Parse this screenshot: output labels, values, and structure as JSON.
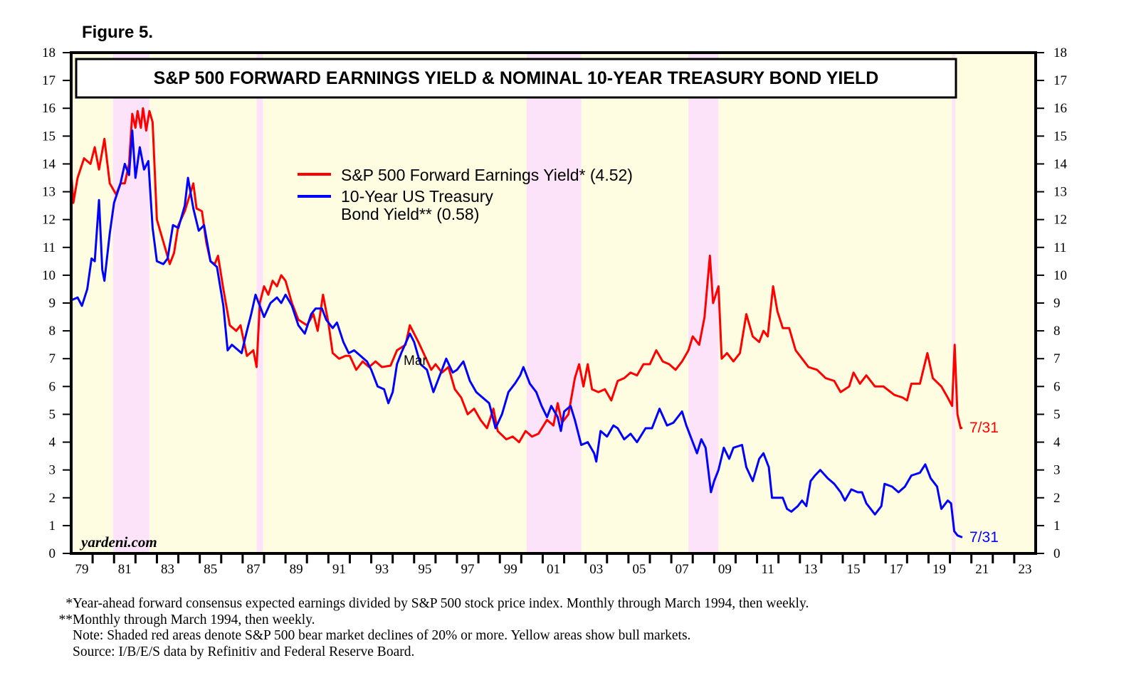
{
  "figure_label": "Figure 5.",
  "chart_data": {
    "type": "line",
    "title": "S&P 500 FORWARD EARNINGS YIELD & NOMINAL 10-YEAR TREASURY BOND YIELD",
    "xlabel": "",
    "ylabel": "",
    "xlim": [
      1979,
      2024
    ],
    "ylim": [
      0,
      18
    ],
    "yticks": [
      0,
      1,
      2,
      3,
      4,
      5,
      6,
      7,
      8,
      9,
      10,
      11,
      12,
      13,
      14,
      15,
      16,
      17,
      18
    ],
    "xtick_labels": [
      "79",
      "81",
      "83",
      "85",
      "87",
      "89",
      "91",
      "93",
      "95",
      "97",
      "99",
      "01",
      "03",
      "05",
      "07",
      "09",
      "11",
      "13",
      "15",
      "17",
      "19",
      "21",
      "23"
    ],
    "grid": false,
    "legend_placement": "upper-center",
    "watermark": "yardeni.com",
    "annotation_mar": "Mar",
    "colors": {
      "background": "#fffde1",
      "bear": "#fce3fa",
      "red": "#ff0000",
      "blue": "#0000ff"
    },
    "bear_markets": [
      [
        1980.95,
        1982.65
      ],
      [
        1987.65,
        1987.95
      ],
      [
        2000.25,
        2002.8
      ],
      [
        2007.8,
        2009.2
      ],
      [
        2020.1,
        2020.25
      ]
    ],
    "series": [
      {
        "name": "S&P 500 Forward Earnings Yield* (4.52)",
        "color": "#ff0000",
        "end_label": "7/31",
        "x": [
          1979.0,
          1979.1,
          1979.3,
          1979.6,
          1979.9,
          1980.1,
          1980.3,
          1980.55,
          1980.8,
          1981.1,
          1981.3,
          1981.5,
          1981.7,
          1981.85,
          1982.0,
          1982.1,
          1982.25,
          1982.35,
          1982.5,
          1982.65,
          1982.8,
          1983.0,
          1983.3,
          1983.6,
          1983.8,
          1984.0,
          1984.3,
          1984.5,
          1984.7,
          1984.85,
          1985.1,
          1985.3,
          1985.5,
          1985.7,
          1985.85,
          1986.1,
          1986.4,
          1986.7,
          1986.9,
          1987.2,
          1987.5,
          1987.65,
          1987.8,
          1988.0,
          1988.2,
          1988.4,
          1988.6,
          1988.8,
          1989.0,
          1989.3,
          1989.6,
          1990.0,
          1990.3,
          1990.5,
          1990.75,
          1991.0,
          1991.2,
          1991.5,
          1991.8,
          1992.0,
          1992.3,
          1992.6,
          1992.9,
          1993.2,
          1993.5,
          1993.9,
          1994.2,
          1994.6,
          1994.8,
          1995.2,
          1995.5,
          1995.8,
          1996.0,
          1996.3,
          1996.6,
          1996.9,
          1997.2,
          1997.5,
          1997.8,
          1998.1,
          1998.4,
          1998.7,
          1998.9,
          1999.3,
          1999.6,
          1999.9,
          2000.2,
          2000.5,
          2000.8,
          2001.2,
          2001.5,
          2001.7,
          2001.9,
          2002.2,
          2002.5,
          2002.7,
          2002.9,
          2003.1,
          2003.3,
          2003.6,
          2003.9,
          2004.2,
          2004.5,
          2004.8,
          2005.1,
          2005.4,
          2005.7,
          2006.0,
          2006.3,
          2006.6,
          2006.9,
          2007.2,
          2007.5,
          2007.8,
          2008.0,
          2008.3,
          2008.55,
          2008.8,
          2008.95,
          2009.2,
          2009.35,
          2009.6,
          2009.9,
          2010.2,
          2010.5,
          2010.8,
          2011.1,
          2011.3,
          2011.5,
          2011.75,
          2011.95,
          2012.2,
          2012.5,
          2012.8,
          2013.1,
          2013.4,
          2013.8,
          2014.2,
          2014.6,
          2014.9,
          2015.3,
          2015.5,
          2015.8,
          2016.1,
          2016.5,
          2016.9,
          2017.4,
          2017.8,
          2018.0,
          2018.2,
          2018.6,
          2018.95,
          2019.2,
          2019.6,
          2019.9,
          2020.1,
          2020.22,
          2020.35,
          2020.5,
          2020.58
        ],
        "values": [
          13.7,
          12.6,
          13.5,
          14.2,
          14.0,
          14.6,
          13.8,
          14.9,
          13.3,
          12.9,
          13.3,
          13.3,
          14.0,
          15.8,
          15.3,
          15.9,
          15.3,
          16.0,
          15.2,
          15.9,
          15.5,
          12.0,
          11.2,
          10.4,
          10.8,
          11.8,
          12.3,
          12.8,
          13.3,
          12.4,
          12.3,
          11.2,
          10.5,
          10.4,
          10.7,
          9.5,
          8.2,
          8.0,
          8.2,
          7.1,
          7.3,
          6.7,
          9.0,
          9.6,
          9.3,
          9.8,
          9.6,
          10.0,
          9.8,
          9.0,
          8.4,
          8.2,
          8.6,
          8.0,
          9.3,
          8.3,
          7.2,
          7.0,
          7.1,
          7.1,
          6.6,
          6.9,
          6.7,
          6.9,
          6.7,
          6.75,
          7.3,
          7.5,
          8.2,
          7.6,
          7.1,
          6.6,
          6.8,
          6.5,
          6.7,
          5.9,
          5.6,
          5.0,
          5.2,
          4.8,
          4.5,
          5.2,
          4.4,
          4.1,
          4.2,
          4.0,
          4.4,
          4.2,
          4.3,
          4.8,
          4.6,
          5.4,
          4.7,
          5.0,
          6.3,
          6.8,
          6.0,
          6.8,
          5.9,
          5.8,
          5.9,
          5.5,
          6.2,
          6.3,
          6.5,
          6.4,
          6.8,
          6.8,
          7.3,
          6.9,
          6.8,
          6.6,
          6.9,
          7.3,
          7.8,
          7.5,
          8.5,
          10.7,
          9.0,
          9.6,
          7.0,
          7.2,
          6.9,
          7.2,
          8.6,
          7.8,
          7.6,
          8.0,
          7.8,
          9.6,
          8.7,
          8.1,
          8.1,
          7.3,
          7.0,
          6.7,
          6.6,
          6.3,
          6.2,
          5.8,
          6.0,
          6.5,
          6.1,
          6.4,
          6.0,
          6.0,
          5.7,
          5.6,
          5.5,
          6.1,
          6.1,
          7.2,
          6.3,
          6.0,
          5.6,
          5.3,
          7.5,
          5.0,
          4.5,
          4.52
        ]
      },
      {
        "name": "10-Year US Treasury Bond Yield** (0.58)",
        "name_line1": "10-Year US Treasury",
        "name_line2": "Bond Yield** (0.58)",
        "color": "#0000ff",
        "end_label": "7/31",
        "x": [
          1979.0,
          1979.3,
          1979.5,
          1979.75,
          1979.95,
          1980.1,
          1980.3,
          1980.45,
          1980.55,
          1980.8,
          1981.0,
          1981.3,
          1981.5,
          1981.7,
          1981.85,
          1982.0,
          1982.2,
          1982.4,
          1982.6,
          1982.8,
          1983.0,
          1983.3,
          1983.5,
          1983.75,
          1984.0,
          1984.3,
          1984.45,
          1984.7,
          1984.95,
          1985.2,
          1985.5,
          1985.8,
          1986.1,
          1986.3,
          1986.5,
          1986.8,
          1986.95,
          1987.2,
          1987.4,
          1987.6,
          1987.8,
          1988.0,
          1988.3,
          1988.6,
          1988.8,
          1989.0,
          1989.3,
          1989.6,
          1989.9,
          1990.2,
          1990.4,
          1990.7,
          1990.9,
          1991.2,
          1991.4,
          1991.7,
          1991.95,
          1992.2,
          1992.5,
          1992.8,
          1993.0,
          1993.3,
          1993.6,
          1993.8,
          1994.0,
          1994.2,
          1994.4,
          1994.8,
          1995.0,
          1995.3,
          1995.6,
          1995.9,
          1996.2,
          1996.5,
          1996.8,
          1997.0,
          1997.3,
          1997.6,
          1997.9,
          1998.2,
          1998.5,
          1998.8,
          1999.1,
          1999.4,
          1999.7,
          1999.95,
          2000.1,
          2000.4,
          2000.7,
          2000.95,
          2001.2,
          2001.4,
          2001.7,
          2001.85,
          2002.0,
          2002.3,
          2002.5,
          2002.8,
          2003.1,
          2003.4,
          2003.5,
          2003.7,
          2004.0,
          2004.3,
          2004.5,
          2004.8,
          2005.1,
          2005.4,
          2005.8,
          2006.1,
          2006.45,
          2006.8,
          2007.1,
          2007.5,
          2007.7,
          2007.9,
          2008.2,
          2008.4,
          2008.6,
          2008.85,
          2009.0,
          2009.2,
          2009.45,
          2009.7,
          2009.9,
          2010.3,
          2010.5,
          2010.8,
          2011.1,
          2011.3,
          2011.55,
          2011.7,
          2011.9,
          2012.2,
          2012.4,
          2012.6,
          2012.9,
          2013.1,
          2013.3,
          2013.5,
          2013.7,
          2013.95,
          2014.3,
          2014.6,
          2014.9,
          2015.1,
          2015.4,
          2015.7,
          2015.9,
          2016.1,
          2016.5,
          2016.8,
          2016.95,
          2017.3,
          2017.6,
          2017.9,
          2018.2,
          2018.6,
          2018.85,
          2019.1,
          2019.4,
          2019.6,
          2019.9,
          2020.05,
          2020.2,
          2020.35,
          2020.5,
          2020.58
        ],
        "values": [
          9.1,
          9.2,
          8.9,
          9.5,
          10.6,
          10.5,
          12.7,
          10.2,
          9.8,
          11.5,
          12.6,
          13.3,
          14.0,
          13.6,
          15.2,
          13.5,
          14.6,
          13.8,
          14.1,
          11.7,
          10.5,
          10.4,
          10.6,
          11.8,
          11.7,
          12.5,
          13.5,
          12.4,
          11.6,
          11.8,
          10.5,
          10.3,
          8.9,
          7.3,
          7.5,
          7.3,
          7.2,
          8.0,
          8.6,
          9.3,
          8.9,
          8.5,
          9.0,
          9.2,
          9.0,
          9.3,
          8.9,
          8.2,
          7.9,
          8.6,
          8.8,
          8.8,
          8.4,
          8.1,
          8.3,
          7.6,
          7.2,
          7.3,
          7.1,
          6.9,
          6.6,
          6.0,
          5.9,
          5.4,
          5.8,
          6.8,
          7.2,
          7.9,
          7.6,
          6.8,
          6.6,
          5.8,
          6.4,
          7.0,
          6.5,
          6.6,
          6.9,
          6.2,
          5.8,
          5.6,
          5.4,
          4.5,
          5.0,
          5.8,
          6.1,
          6.4,
          6.7,
          6.1,
          5.8,
          5.3,
          4.9,
          5.3,
          4.9,
          4.4,
          5.1,
          5.3,
          4.8,
          3.9,
          4.0,
          3.6,
          3.3,
          4.4,
          4.2,
          4.6,
          4.5,
          4.1,
          4.3,
          4.0,
          4.5,
          4.5,
          5.2,
          4.6,
          4.7,
          5.1,
          4.6,
          4.2,
          3.6,
          4.1,
          3.8,
          2.2,
          2.6,
          3.0,
          3.8,
          3.4,
          3.8,
          3.9,
          3.1,
          2.6,
          3.4,
          3.6,
          3.1,
          2.0,
          2.0,
          2.0,
          1.6,
          1.5,
          1.7,
          1.9,
          1.7,
          2.6,
          2.8,
          3.0,
          2.7,
          2.5,
          2.2,
          1.9,
          2.3,
          2.2,
          2.2,
          1.8,
          1.4,
          1.7,
          2.5,
          2.4,
          2.2,
          2.4,
          2.8,
          2.9,
          3.2,
          2.7,
          2.4,
          1.6,
          1.9,
          1.8,
          0.8,
          0.65,
          0.6,
          0.58
        ]
      }
    ]
  },
  "footnotes": [
    {
      "marker": "*",
      "text": "Year-ahead forward consensus expected earnings divided by S&P 500 stock price index. Monthly through March 1994, then weekly."
    },
    {
      "marker": "**",
      "text": "Monthly through March 1994, then weekly."
    },
    {
      "marker": "",
      "text": "Note: Shaded red areas denote S&P 500 bear market declines of 20% or more. Yellow areas show bull markets."
    },
    {
      "marker": "",
      "text": "Source: I/B/E/S data by Refinitiv and Federal Reserve Board."
    }
  ]
}
